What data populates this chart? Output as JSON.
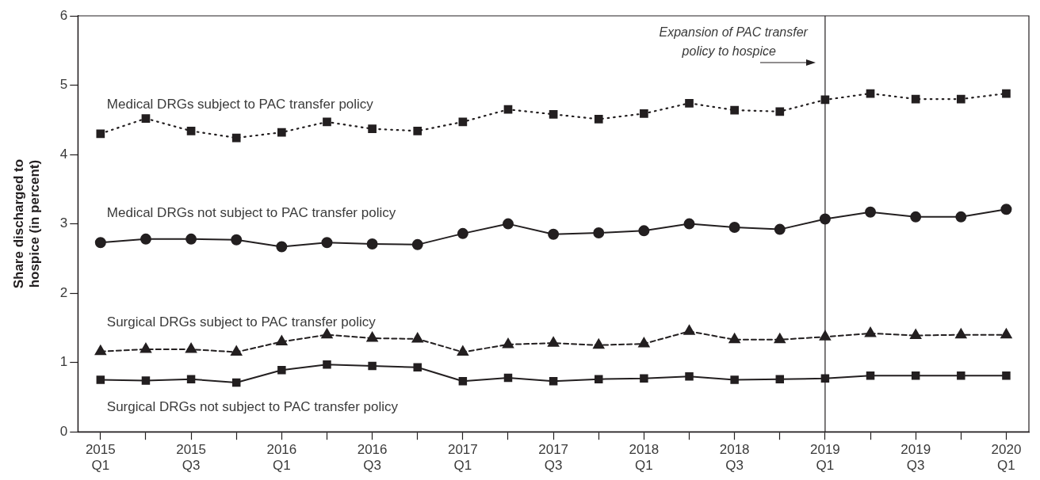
{
  "chart_data": {
    "type": "line",
    "ylabel": "Share discharged to\nhospice (in percent)",
    "categories": [
      "2015 Q1",
      null,
      "2015 Q3",
      null,
      "2016 Q1",
      null,
      "2016 Q3",
      null,
      "2017 Q1",
      null,
      "2017 Q3",
      null,
      "2018 Q1",
      null,
      "2018 Q3",
      null,
      "2019 Q1",
      null,
      "2019 Q3",
      null,
      "2020 Q1"
    ],
    "series": [
      {
        "name": "Medical DRGs subject to PAC transfer policy",
        "color": "#231f20",
        "marker": "square",
        "line_style": "dotted",
        "values": [
          4.3,
          4.52,
          4.34,
          4.24,
          4.32,
          4.47,
          4.37,
          4.34,
          4.47,
          4.65,
          4.58,
          4.51,
          4.59,
          4.74,
          4.64,
          4.62,
          4.79,
          4.88,
          4.8,
          4.8,
          4.88
        ]
      },
      {
        "name": "Medical DRGs not subject to PAC transfer policy",
        "color": "#231f20",
        "marker": "circle",
        "line_style": "solid",
        "values": [
          2.73,
          2.78,
          2.78,
          2.77,
          2.67,
          2.73,
          2.71,
          2.7,
          2.86,
          3.0,
          2.85,
          2.87,
          2.9,
          3.0,
          2.95,
          2.92,
          3.07,
          3.17,
          3.1,
          3.1,
          3.21
        ]
      },
      {
        "name": "Surgical DRGs subject to PAC transfer policy",
        "color": "#231f20",
        "marker": "triangle",
        "line_style": "dashed",
        "values": [
          1.16,
          1.19,
          1.19,
          1.15,
          1.3,
          1.4,
          1.35,
          1.34,
          1.15,
          1.26,
          1.28,
          1.25,
          1.27,
          1.45,
          1.33,
          1.33,
          1.37,
          1.42,
          1.39,
          1.4,
          1.4
        ]
      },
      {
        "name": "Surgical DRGs not subject to PAC transfer policy",
        "color": "#231f20",
        "marker": "square",
        "line_style": "solid",
        "values": [
          0.75,
          0.74,
          0.76,
          0.71,
          0.89,
          0.97,
          0.95,
          0.93,
          0.73,
          0.78,
          0.73,
          0.76,
          0.77,
          0.8,
          0.75,
          0.76,
          0.77,
          0.81,
          0.81,
          0.81,
          0.81
        ]
      }
    ],
    "ylim": [
      0,
      6
    ],
    "yticks": [
      0,
      1,
      2,
      3,
      4,
      5,
      6
    ],
    "grid": false,
    "legend": false,
    "ref_lines": [
      {
        "axis": "x",
        "value": "2019 Q1",
        "label": "Expansion of PAC transfer\npolicy to hospice",
        "color": "#231f20"
      }
    ]
  }
}
